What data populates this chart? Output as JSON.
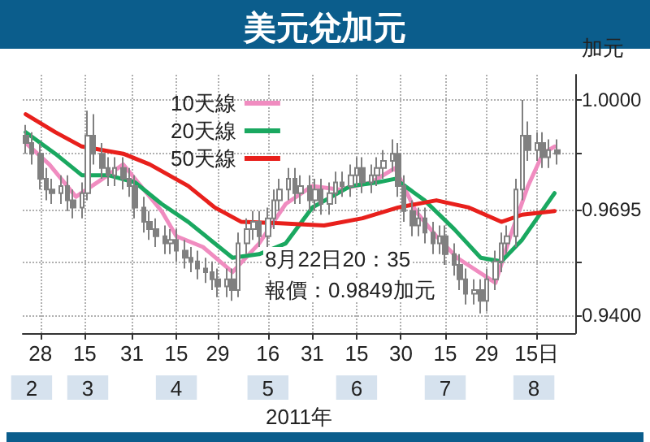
{
  "chart_data": {
    "type": "candlestick",
    "title": "美元兌加元",
    "xlabel": "2011年",
    "ylabel": "加元",
    "color": "#808080",
    "x": [
      "2011-02-23",
      "2011-02-25",
      "2011-02-28",
      "2011-03-02",
      "2011-03-04",
      "2011-03-07",
      "2011-03-09",
      "2011-03-11",
      "2011-03-14",
      "2011-03-16",
      "2011-03-18",
      "2011-03-21",
      "2011-03-23",
      "2011-03-25",
      "2011-03-28",
      "2011-03-30",
      "2011-04-01",
      "2011-04-04",
      "2011-04-06",
      "2011-04-08",
      "2011-04-11",
      "2011-04-13",
      "2011-04-15",
      "2011-04-18",
      "2011-04-20",
      "2011-04-22",
      "2011-04-25",
      "2011-04-27",
      "2011-04-29",
      "2011-05-02",
      "2011-05-04",
      "2011-05-06",
      "2011-05-09",
      "2011-05-11",
      "2011-05-13",
      "2011-05-16",
      "2011-05-18",
      "2011-05-20",
      "2011-05-23",
      "2011-05-25",
      "2011-05-27",
      "2011-05-30",
      "2011-06-01",
      "2011-06-03",
      "2011-06-06",
      "2011-06-08",
      "2011-06-10",
      "2011-06-13",
      "2011-06-15",
      "2011-06-17",
      "2011-06-20",
      "2011-06-22",
      "2011-06-24",
      "2011-06-27",
      "2011-06-29",
      "2011-07-01",
      "2011-07-04",
      "2011-07-06",
      "2011-07-08",
      "2011-07-11",
      "2011-07-13",
      "2011-07-15",
      "2011-07-18",
      "2011-07-20",
      "2011-07-22",
      "2011-07-25",
      "2011-07-27",
      "2011-07-29",
      "2011-08-01",
      "2011-08-03",
      "2011-08-05",
      "2011-08-08",
      "2011-08-10",
      "2011-08-12",
      "2011-08-15",
      "2011-08-17",
      "2011-08-19",
      "2011-08-22"
    ],
    "ohlc": [
      [
        0.99,
        0.993,
        0.985,
        0.988
      ],
      [
        0.988,
        0.991,
        0.982,
        0.985
      ],
      [
        0.985,
        0.988,
        0.975,
        0.978
      ],
      [
        0.978,
        0.981,
        0.972,
        0.975
      ],
      [
        0.975,
        0.978,
        0.971,
        0.974
      ],
      [
        0.974,
        0.979,
        0.971,
        0.976
      ],
      [
        0.976,
        0.979,
        0.969,
        0.972
      ],
      [
        0.972,
        0.975,
        0.967,
        0.97
      ],
      [
        0.97,
        0.977,
        0.967,
        0.974
      ],
      [
        0.974,
        0.997,
        0.972,
        0.99
      ],
      [
        0.99,
        0.996,
        0.982,
        0.985
      ],
      [
        0.985,
        0.988,
        0.978,
        0.981
      ],
      [
        0.981,
        0.984,
        0.976,
        0.979
      ],
      [
        0.979,
        0.984,
        0.976,
        0.981
      ],
      [
        0.981,
        0.984,
        0.975,
        0.978
      ],
      [
        0.978,
        0.981,
        0.973,
        0.976
      ],
      [
        0.976,
        0.979,
        0.967,
        0.97
      ],
      [
        0.97,
        0.973,
        0.963,
        0.966
      ],
      [
        0.966,
        0.969,
        0.961,
        0.964
      ],
      [
        0.964,
        0.967,
        0.959,
        0.962
      ],
      [
        0.962,
        0.965,
        0.957,
        0.96
      ],
      [
        0.96,
        0.964,
        0.957,
        0.961
      ],
      [
        0.961,
        0.964,
        0.955,
        0.958
      ],
      [
        0.958,
        0.961,
        0.953,
        0.956
      ],
      [
        0.956,
        0.959,
        0.952,
        0.955
      ],
      [
        0.955,
        0.958,
        0.95,
        0.953
      ],
      [
        0.953,
        0.956,
        0.949,
        0.952
      ],
      [
        0.952,
        0.955,
        0.947,
        0.95
      ],
      [
        0.95,
        0.953,
        0.945,
        0.948
      ],
      [
        0.948,
        0.953,
        0.945,
        0.95
      ],
      [
        0.95,
        0.953,
        0.944,
        0.947
      ],
      [
        0.947,
        0.963,
        0.945,
        0.96
      ],
      [
        0.96,
        0.967,
        0.957,
        0.964
      ],
      [
        0.964,
        0.969,
        0.961,
        0.966
      ],
      [
        0.966,
        0.969,
        0.959,
        0.962
      ],
      [
        0.962,
        0.97,
        0.959,
        0.967
      ],
      [
        0.967,
        0.975,
        0.964,
        0.972
      ],
      [
        0.972,
        0.978,
        0.969,
        0.975
      ],
      [
        0.975,
        0.981,
        0.972,
        0.978
      ],
      [
        0.978,
        0.981,
        0.971,
        0.974
      ],
      [
        0.974,
        0.979,
        0.971,
        0.976
      ],
      [
        0.976,
        0.979,
        0.969,
        0.972
      ],
      [
        0.972,
        0.978,
        0.969,
        0.975
      ],
      [
        0.975,
        0.978,
        0.968,
        0.971
      ],
      [
        0.971,
        0.977,
        0.968,
        0.974
      ],
      [
        0.974,
        0.98,
        0.971,
        0.977
      ],
      [
        0.977,
        0.98,
        0.973,
        0.976
      ],
      [
        0.976,
        0.982,
        0.973,
        0.979
      ],
      [
        0.979,
        0.984,
        0.976,
        0.981
      ],
      [
        0.981,
        0.984,
        0.974,
        0.977
      ],
      [
        0.977,
        0.982,
        0.974,
        0.979
      ],
      [
        0.979,
        0.984,
        0.976,
        0.981
      ],
      [
        0.981,
        0.986,
        0.978,
        0.983
      ],
      [
        0.983,
        0.989,
        0.98,
        0.985
      ],
      [
        0.985,
        0.988,
        0.973,
        0.976
      ],
      [
        0.976,
        0.979,
        0.966,
        0.969
      ],
      [
        0.969,
        0.972,
        0.962,
        0.965
      ],
      [
        0.965,
        0.97,
        0.962,
        0.967
      ],
      [
        0.967,
        0.97,
        0.96,
        0.963
      ],
      [
        0.963,
        0.966,
        0.957,
        0.96
      ],
      [
        0.96,
        0.965,
        0.957,
        0.962
      ],
      [
        0.962,
        0.965,
        0.954,
        0.957
      ],
      [
        0.957,
        0.96,
        0.951,
        0.954
      ],
      [
        0.954,
        0.957,
        0.947,
        0.95
      ],
      [
        0.95,
        0.953,
        0.943,
        0.946
      ],
      [
        0.946,
        0.95,
        0.943,
        0.947
      ],
      [
        0.947,
        0.95,
        0.9405,
        0.944
      ],
      [
        0.944,
        0.953,
        0.941,
        0.95
      ],
      [
        0.95,
        0.958,
        0.947,
        0.955
      ],
      [
        0.955,
        0.963,
        0.952,
        0.96
      ],
      [
        0.96,
        0.965,
        0.957,
        0.962
      ],
      [
        0.962,
        0.978,
        0.959,
        0.975
      ],
      [
        0.975,
        1.0,
        0.972,
        0.99
      ],
      [
        0.99,
        0.994,
        0.983,
        0.986
      ],
      [
        0.986,
        0.991,
        0.983,
        0.988
      ],
      [
        0.988,
        0.991,
        0.981,
        0.984
      ],
      [
        0.984,
        0.989,
        0.981,
        0.986
      ],
      [
        0.986,
        0.989,
        0.982,
        0.985
      ]
    ],
    "series": [
      {
        "name": "10天線",
        "type": "line",
        "color": "#f08cc0",
        "x": [
          "2011-02-23",
          "2011-03-03",
          "2011-03-12",
          "2011-03-21",
          "2011-03-28",
          "2011-04-02",
          "2011-04-10",
          "2011-04-15",
          "2011-04-24",
          "2011-05-04",
          "2011-05-13",
          "2011-05-22",
          "2011-05-31",
          "2011-06-09",
          "2011-06-20",
          "2011-06-28",
          "2011-07-05",
          "2011-07-12",
          "2011-07-19",
          "2011-08-01",
          "2011-08-06",
          "2011-08-12",
          "2011-08-17",
          "2011-08-21"
        ],
        "values": [
          0.988,
          0.982,
          0.973,
          0.978,
          0.982,
          0.977,
          0.969,
          0.962,
          0.959,
          0.952,
          0.96,
          0.971,
          0.976,
          0.975,
          0.977,
          0.981,
          0.969,
          0.962,
          0.956,
          0.949,
          0.962,
          0.976,
          0.985,
          0.987
        ]
      },
      {
        "name": "20天線",
        "type": "line",
        "color": "#1aa860",
        "x": [
          "2011-02-23",
          "2011-03-05",
          "2011-03-14",
          "2011-03-23",
          "2011-04-01",
          "2011-04-10",
          "2011-04-19",
          "2011-05-04",
          "2011-05-13",
          "2011-05-22",
          "2011-05-31",
          "2011-06-13",
          "2011-06-22",
          "2011-06-28",
          "2011-07-08",
          "2011-07-18",
          "2011-07-27",
          "2011-08-03",
          "2011-08-10",
          "2011-08-21"
        ],
        "values": [
          0.991,
          0.985,
          0.979,
          0.979,
          0.977,
          0.971,
          0.966,
          0.956,
          0.957,
          0.96,
          0.97,
          0.976,
          0.977,
          0.978,
          0.972,
          0.964,
          0.956,
          0.955,
          0.961,
          0.974
        ]
      },
      {
        "name": "50天線",
        "type": "line",
        "color": "#e8201c",
        "x": [
          "2011-02-23",
          "2011-03-05",
          "2011-03-14",
          "2011-03-28",
          "2011-04-06",
          "2011-04-19",
          "2011-04-28",
          "2011-05-07",
          "2011-05-20",
          "2011-06-04",
          "2011-06-17",
          "2011-06-29",
          "2011-07-12",
          "2011-07-23",
          "2011-08-03",
          "2011-08-10",
          "2011-08-21"
        ],
        "values": [
          0.996,
          0.991,
          0.987,
          0.985,
          0.982,
          0.976,
          0.97,
          0.966,
          0.9656,
          0.965,
          0.967,
          0.97,
          0.972,
          0.97,
          0.966,
          0.968,
          0.969
        ]
      }
    ],
    "xlim": [
      "2011-02-22",
      "2011-08-28"
    ],
    "xticks": [
      {
        "value": "2011-02-28",
        "label": "28"
      },
      {
        "value": "2011-03-15",
        "label": "15"
      },
      {
        "value": "2011-03-31",
        "label": "31"
      },
      {
        "value": "2011-04-15",
        "label": "15"
      },
      {
        "value": "2011-04-29",
        "label": "29"
      },
      {
        "value": "2011-05-16",
        "label": "16"
      },
      {
        "value": "2011-05-31",
        "label": "31"
      },
      {
        "value": "2011-06-15",
        "label": "15"
      },
      {
        "value": "2011-06-30",
        "label": "30"
      },
      {
        "value": "2011-07-15",
        "label": "15"
      },
      {
        "value": "2011-07-29",
        "label": "29"
      },
      {
        "value": "2011-08-15",
        "label": "15日"
      }
    ],
    "ylim": [
      0.935,
      1.007
    ],
    "yticks": [
      {
        "value": 0.94,
        "label": "0.9400"
      },
      {
        "value": 0.955,
        "label": null
      },
      {
        "value": 0.9695,
        "label": "0.9695"
      },
      {
        "value": 0.985,
        "label": null
      },
      {
        "value": 1,
        "label": "1.0000"
      }
    ],
    "grid": true,
    "legend": "top left",
    "marker": "none",
    "line_style": "solid",
    "x2lim": [
      "2011-02-22",
      "2011-08-28"
    ],
    "x2ticks": [
      {
        "value": "2011-02-25",
        "label": "2"
      },
      {
        "value": "2011-03-16",
        "label": "3"
      },
      {
        "value": "2011-04-15",
        "label": "4"
      },
      {
        "value": "2011-05-16",
        "label": "5"
      },
      {
        "value": "2011-06-15",
        "label": "6"
      },
      {
        "value": "2011-07-15",
        "label": "7"
      },
      {
        "value": "2011-08-14",
        "label": "8"
      }
    ],
    "annotations": [
      "8月22日20：35",
      "報價：0.9849加元"
    ]
  }
}
